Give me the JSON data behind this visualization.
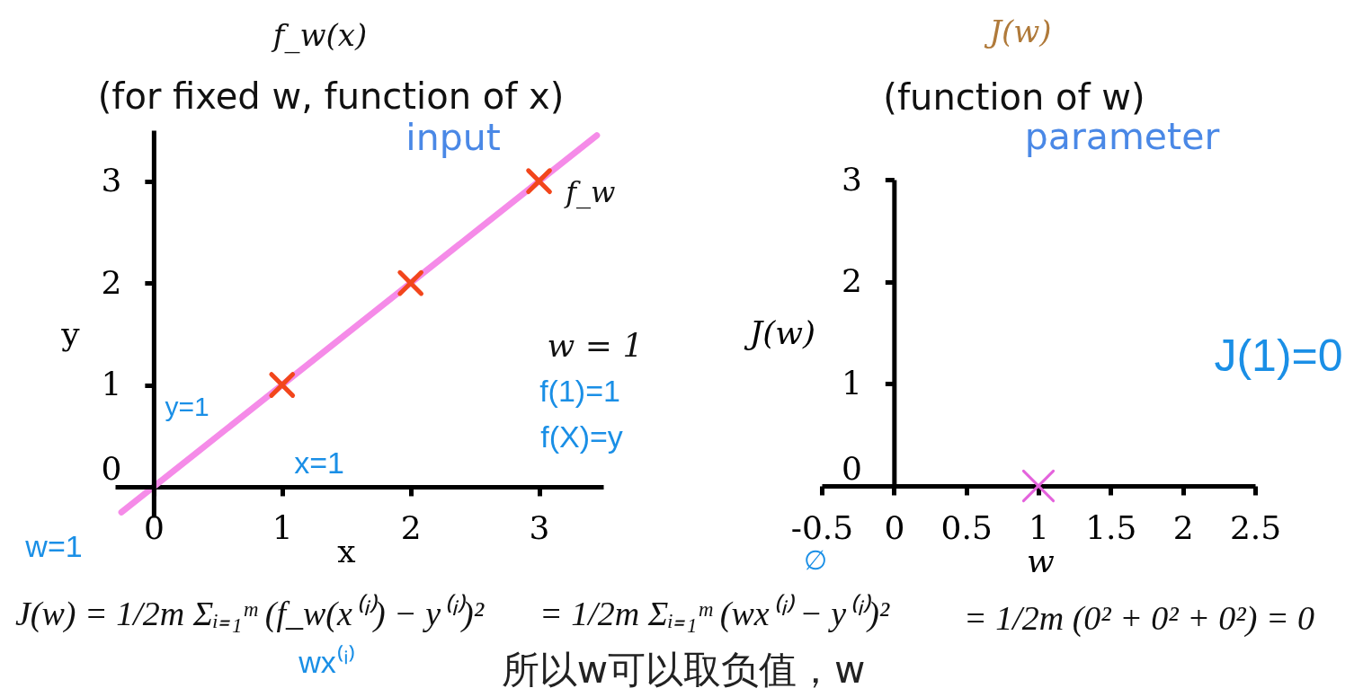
{
  "chart_data": [
    {
      "type": "scatter",
      "title": "f_w(x)",
      "subtitle": "(for fixed w, function of x)",
      "xlabel": "x",
      "ylabel": "y",
      "xlim": [
        -0.3,
        3.5
      ],
      "ylim": [
        -0.3,
        3.5
      ],
      "xticks": [
        0,
        1,
        2,
        3
      ],
      "yticks": [
        0,
        1,
        2,
        3
      ],
      "series": [
        {
          "name": "f_w",
          "type": "line",
          "color": "#f58be8",
          "x": [
            -0.25,
            3.45
          ],
          "values": [
            -0.25,
            3.45
          ]
        },
        {
          "color": "#f2461c",
          "x": [
            1,
            2,
            3
          ],
          "values": [
            1,
            2,
            3
          ],
          "marker": "cross"
        }
      ],
      "annotations": [
        "input",
        "y=1",
        "x=1",
        "w = 1",
        "f(1)=1",
        "f(X)=y",
        "w=1",
        "J(w) = 1/2m Σᵢ₌₁ᵐ (f_w(x⁽ⁱ⁾) − y⁽ⁱ⁾)²",
        "wx⁽ⁱ⁾"
      ]
    },
    {
      "type": "scatter",
      "title": "J(w)",
      "subtitle": "(function of w)",
      "xlabel": "w",
      "ylabel": "J(w)",
      "xlim": [
        -0.5,
        2.5
      ],
      "ylim": [
        0,
        3
      ],
      "xticks": [
        -0.5,
        0,
        0.5,
        1,
        1.5,
        2,
        2.5
      ],
      "yticks": [
        0,
        1,
        2,
        3
      ],
      "series": [
        {
          "color": "#e462dc",
          "x": [
            1
          ],
          "values": [
            0
          ],
          "marker": "cross"
        }
      ],
      "annotations": [
        "parameter",
        "J(1)=0",
        "= 1/2m Σᵢ₌₁ᵐ (wx⁽ⁱ⁾ − y⁽ⁱ⁾)²",
        "∅",
        "= 1/2m (0² + 0² + 0²) = 0",
        "所以w可以取负值，w"
      ]
    }
  ]
}
